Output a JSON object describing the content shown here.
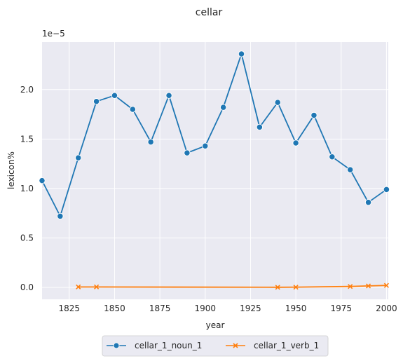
{
  "chart_data": {
    "type": "line",
    "title": "cellar",
    "xlabel": "year",
    "ylabel": "lexicon%",
    "y_scale_label": "1e−5",
    "xlim": [
      1810,
      2001
    ],
    "ylim": [
      -0.12,
      2.48
    ],
    "x_ticks": [
      1825,
      1850,
      1875,
      1900,
      1925,
      1950,
      1975,
      2000
    ],
    "x_tick_labels": [
      "1825",
      "1850",
      "1875",
      "1900",
      "1925",
      "1950",
      "1975",
      "2000"
    ],
    "y_ticks": [
      0,
      0.5,
      1.0,
      1.5,
      2.0
    ],
    "y_tick_labels": [
      "0.0",
      "0.5",
      "1.0",
      "1.5",
      "2.0"
    ],
    "grid": true,
    "legend_position": "bottom-center",
    "series": [
      {
        "name": "cellar_1_noun_1",
        "color": "#1f77b4",
        "marker": "circle",
        "x": [
          1810,
          1820,
          1830,
          1840,
          1850,
          1860,
          1870,
          1880,
          1890,
          1900,
          1910,
          1920,
          1930,
          1940,
          1950,
          1960,
          1970,
          1980,
          1990,
          2000
        ],
        "y": [
          1.08,
          0.72,
          1.31,
          1.88,
          1.94,
          1.8,
          1.47,
          1.94,
          1.36,
          1.43,
          1.82,
          2.36,
          1.62,
          1.87,
          1.46,
          1.74,
          1.32,
          1.19,
          0.86,
          0.99
        ]
      },
      {
        "name": "cellar_1_verb_1",
        "color": "#ff7f0e",
        "marker": "x",
        "x": [
          1830,
          1840,
          1940,
          1950,
          1980,
          1990,
          2000
        ],
        "y": [
          0.005,
          0.005,
          0.002,
          0.003,
          0.01,
          0.015,
          0.02
        ]
      }
    ]
  }
}
